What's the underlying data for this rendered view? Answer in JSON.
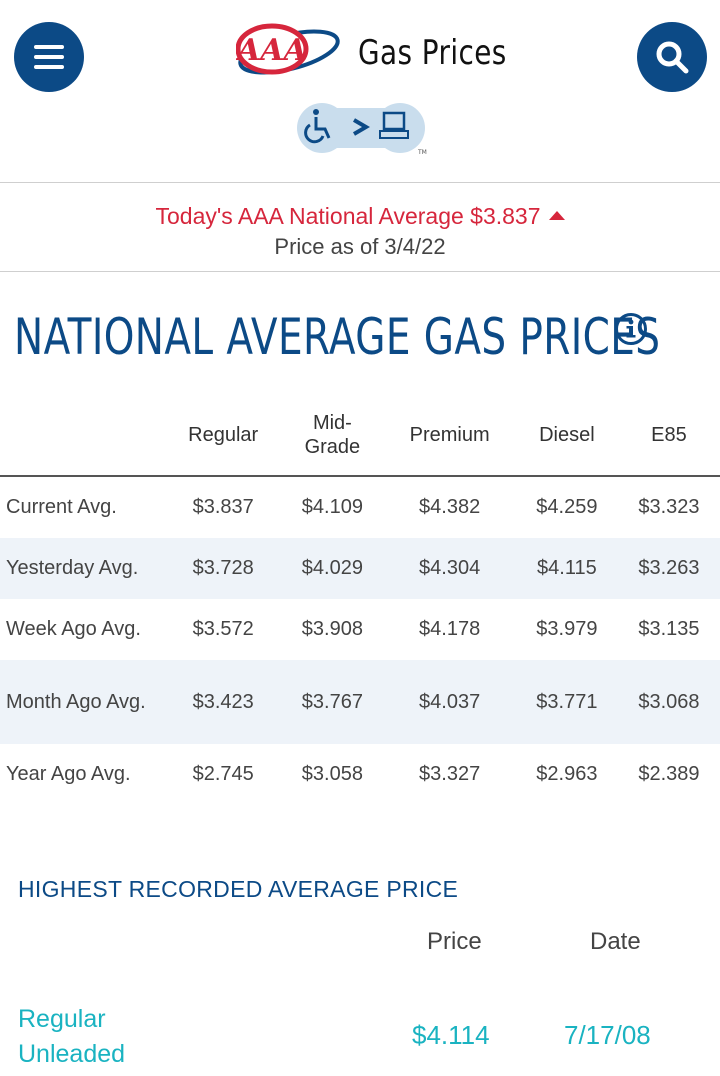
{
  "header": {
    "brand": "AAA",
    "title": "Gas Prices",
    "menu_icon": "hamburger-menu-icon",
    "search_icon": "search-icon",
    "accessibility_icon": "accessibility-toggle-icon"
  },
  "banner": {
    "average_text": "Today's AAA National Average $3.837",
    "date_text": "Price as of 3/4/22",
    "trend": "up",
    "trend_color": "#d6263c"
  },
  "national": {
    "title": "NATIONAL AVERAGE GAS PRICES",
    "columns": [
      "Regular",
      "Mid-\nGrade",
      "Premium",
      "Diesel",
      "E85"
    ],
    "rows": [
      {
        "label": "Current Avg.",
        "values": [
          "$3.837",
          "$4.109",
          "$4.382",
          "$4.259",
          "$3.323"
        ]
      },
      {
        "label": "Yesterday Avg.",
        "values": [
          "$3.728",
          "$4.029",
          "$4.304",
          "$4.115",
          "$3.263"
        ]
      },
      {
        "label": "Week Ago Avg.",
        "values": [
          "$3.572",
          "$3.908",
          "$4.178",
          "$3.979",
          "$3.135"
        ]
      },
      {
        "label": "Month Ago Avg.",
        "values": [
          "$3.423",
          "$3.767",
          "$4.037",
          "$3.771",
          "$3.068"
        ]
      },
      {
        "label": "Year Ago Avg.",
        "values": [
          "$2.745",
          "$3.058",
          "$3.327",
          "$2.963",
          "$2.389"
        ]
      }
    ]
  },
  "highest": {
    "title": "HIGHEST RECORDED AVERAGE PRICE",
    "price_header": "Price",
    "date_header": "Date",
    "grade": "Regular Unleaded",
    "price": "$4.114",
    "date": "7/17/08"
  },
  "colors": {
    "primary_blue": "#0c4a86",
    "accent_red": "#d6263c",
    "teal": "#1ab3c1",
    "row_alt": "#eef3f9"
  }
}
